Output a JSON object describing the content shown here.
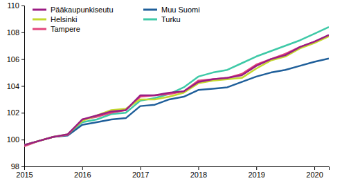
{
  "chart_data": {
    "type": "line",
    "x": [
      2015,
      2015.25,
      2015.5,
      2015.75,
      2016,
      2016.25,
      2016.5,
      2016.75,
      2017,
      2017.25,
      2017.5,
      2017.75,
      2018,
      2018.25,
      2018.5,
      2018.75,
      2019,
      2019.25,
      2019.5,
      2019.75,
      2020,
      2020.25
    ],
    "series": [
      {
        "name": "Pääkaupunkiseutu",
        "color": "#9b1c84",
        "values": [
          99.6,
          99.9,
          100.2,
          100.4,
          101.5,
          101.8,
          102.1,
          102.2,
          103.3,
          103.3,
          103.5,
          103.6,
          104.3,
          104.5,
          104.6,
          104.8,
          105.5,
          106.0,
          106.3,
          106.9,
          107.3,
          107.8
        ]
      },
      {
        "name": "Helsinki",
        "color": "#c3d82e",
        "values": [
          99.6,
          99.9,
          100.2,
          100.4,
          101.4,
          101.8,
          102.2,
          102.3,
          103.0,
          103.0,
          103.2,
          103.5,
          104.2,
          104.4,
          104.5,
          104.6,
          105.3,
          105.9,
          106.2,
          106.8,
          107.2,
          107.7
        ]
      },
      {
        "name": "Tampere",
        "color": "#e2457c",
        "values": [
          99.5,
          99.9,
          100.2,
          100.35,
          101.5,
          101.7,
          102.0,
          102.2,
          103.2,
          103.3,
          103.4,
          103.6,
          104.4,
          104.5,
          104.6,
          104.9,
          105.6,
          106.0,
          106.4,
          106.9,
          107.3,
          107.75
        ]
      },
      {
        "name": "Muu Suomi",
        "color": "#1f5f9a",
        "values": [
          99.6,
          99.9,
          100.2,
          100.3,
          101.1,
          101.3,
          101.5,
          101.6,
          102.5,
          102.6,
          103.0,
          103.2,
          103.7,
          103.8,
          103.9,
          104.3,
          104.7,
          105.0,
          105.2,
          105.5,
          105.8,
          106.05
        ]
      },
      {
        "name": "Turku",
        "color": "#3ec9a7",
        "values": [
          99.6,
          99.9,
          100.2,
          100.35,
          101.3,
          101.5,
          101.9,
          102.0,
          102.9,
          103.1,
          103.4,
          103.9,
          104.7,
          105.0,
          105.2,
          105.7,
          106.2,
          106.6,
          107.0,
          107.4,
          107.9,
          108.4
        ]
      }
    ],
    "xlim": [
      2015,
      2020.25
    ],
    "xticks": [
      2015,
      2016,
      2017,
      2018,
      2019,
      2020
    ],
    "ylim": [
      98,
      110
    ],
    "yticks": [
      98,
      100,
      102,
      104,
      106,
      108,
      110
    ],
    "grid": false,
    "legend": "top-left"
  }
}
